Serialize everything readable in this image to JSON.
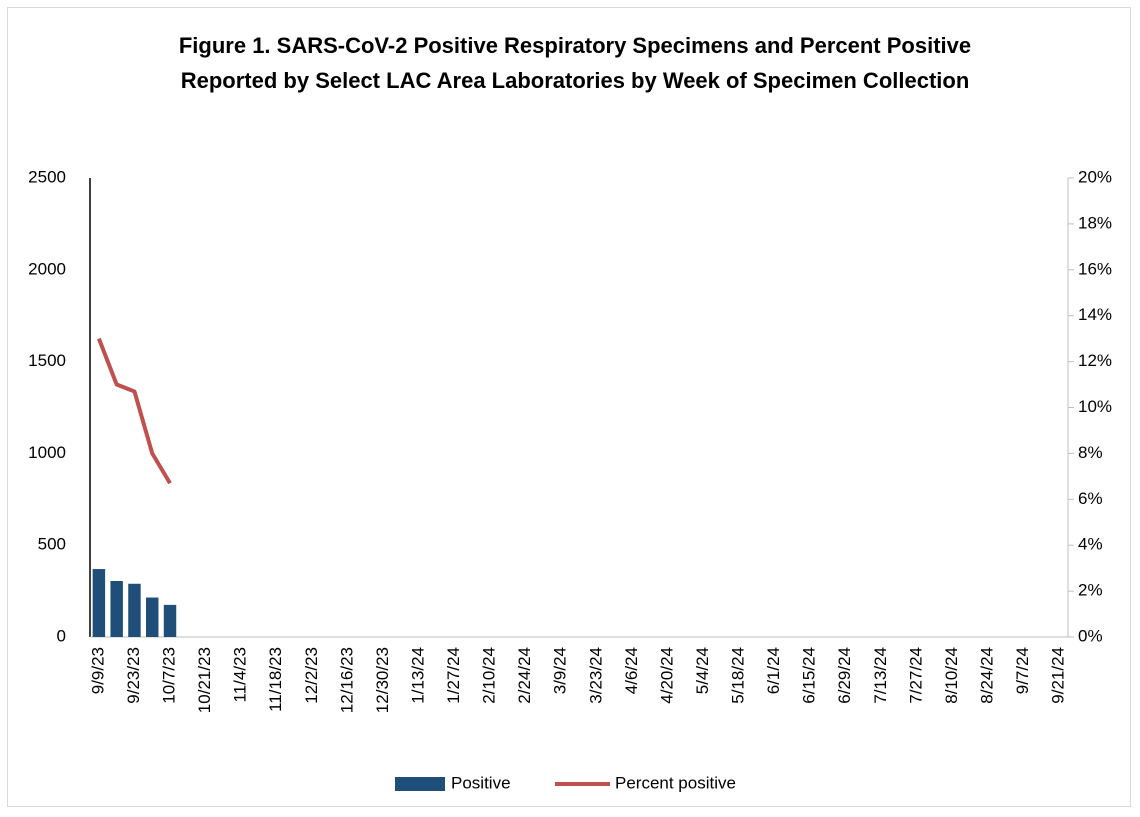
{
  "chart_data": {
    "type": "bar-line",
    "title": "Figure 1. SARS-CoV-2 Positive Respiratory Specimens and Percent Positive Reported by Select LAC Area Laboratories by Week of Specimen Collection",
    "categories": [
      "9/9/23",
      null,
      "9/23/23",
      null,
      "10/7/23",
      null,
      "10/21/23",
      null,
      "11/4/23",
      null,
      "11/18/23",
      null,
      "12/2/23",
      null,
      "12/16/23",
      null,
      "12/30/23",
      null,
      "1/13/24",
      null,
      "1/27/24",
      null,
      "2/10/24",
      null,
      "2/24/24",
      null,
      "3/9/24",
      null,
      "3/23/24",
      null,
      "4/6/24",
      null,
      "4/20/24",
      null,
      "5/4/24",
      null,
      "5/18/24",
      null,
      "6/1/24",
      null,
      "6/15/24",
      null,
      "6/29/24",
      null,
      "7/13/24",
      null,
      "7/27/24",
      null,
      "8/10/24",
      null,
      "8/24/24",
      null,
      "9/7/24",
      null,
      "9/21/24"
    ],
    "series": [
      {
        "name": "Positive",
        "type": "bar",
        "color": "#1f4e79",
        "values": [
          370,
          305,
          290,
          215,
          175,
          null,
          null,
          null,
          null,
          null,
          null,
          null,
          null,
          null,
          null,
          null,
          null,
          null,
          null,
          null,
          null,
          null,
          null,
          null,
          null,
          null,
          null,
          null,
          null,
          null,
          null,
          null,
          null,
          null,
          null,
          null,
          null,
          null,
          null,
          null,
          null,
          null,
          null,
          null,
          null,
          null,
          null,
          null,
          null,
          null,
          null,
          null,
          null,
          null,
          null
        ]
      },
      {
        "name": "Percent positive",
        "type": "line",
        "axis": "y2",
        "color": "#c0504d",
        "values": [
          13,
          11,
          10.7,
          8,
          6.7,
          null,
          null,
          null,
          null,
          null,
          null,
          null,
          null,
          null,
          null,
          null,
          null,
          null,
          null,
          null,
          null,
          null,
          null,
          null,
          null,
          null,
          null,
          null,
          null,
          null,
          null,
          null,
          null,
          null,
          null,
          null,
          null,
          null,
          null,
          null,
          null,
          null,
          null,
          null,
          null,
          null,
          null,
          null,
          null,
          null,
          null,
          null,
          null,
          null,
          null
        ]
      }
    ],
    "ylim": [
      0,
      2500
    ],
    "yticks": [
      0,
      500,
      1000,
      1500,
      2000,
      2500
    ],
    "y2lim": [
      0,
      20
    ],
    "y2ticks": [
      {
        "value": 0,
        "label": "0%"
      },
      {
        "value": 2,
        "label": "2%"
      },
      {
        "value": 4,
        "label": "4%"
      },
      {
        "value": 6,
        "label": "6%"
      },
      {
        "value": 8,
        "label": "8%"
      },
      {
        "value": 10,
        "label": "10%"
      },
      {
        "value": 12,
        "label": "12%"
      },
      {
        "value": 14,
        "label": "14%"
      },
      {
        "value": 16,
        "label": "16%"
      },
      {
        "value": 18,
        "label": "18%"
      },
      {
        "value": 20,
        "label": "20%"
      }
    ],
    "legend": "bottom",
    "grid": false
  }
}
